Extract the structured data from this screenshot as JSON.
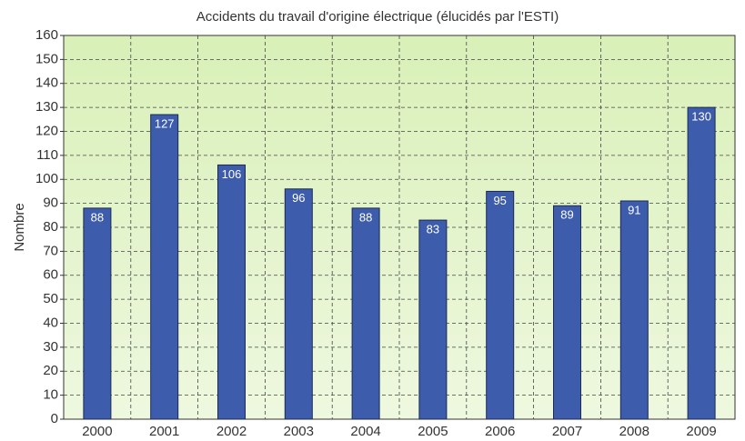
{
  "chart_data": {
    "type": "bar",
    "title": "Accidents du travail d'origine électrique (élucidés par l'ESTI)",
    "y_label": "Nombre",
    "categories": [
      "2000",
      "2001",
      "2002",
      "2003",
      "2004",
      "2005",
      "2006",
      "2007",
      "2008",
      "2009"
    ],
    "values": [
      88,
      127,
      106,
      96,
      88,
      83,
      95,
      89,
      91,
      130
    ],
    "color": "#3d5cab",
    "ylim": [
      0,
      160
    ],
    "yticks": [
      0,
      10,
      20,
      30,
      40,
      50,
      60,
      70,
      80,
      90,
      100,
      110,
      120,
      130,
      140,
      150,
      160
    ],
    "grid": true
  }
}
